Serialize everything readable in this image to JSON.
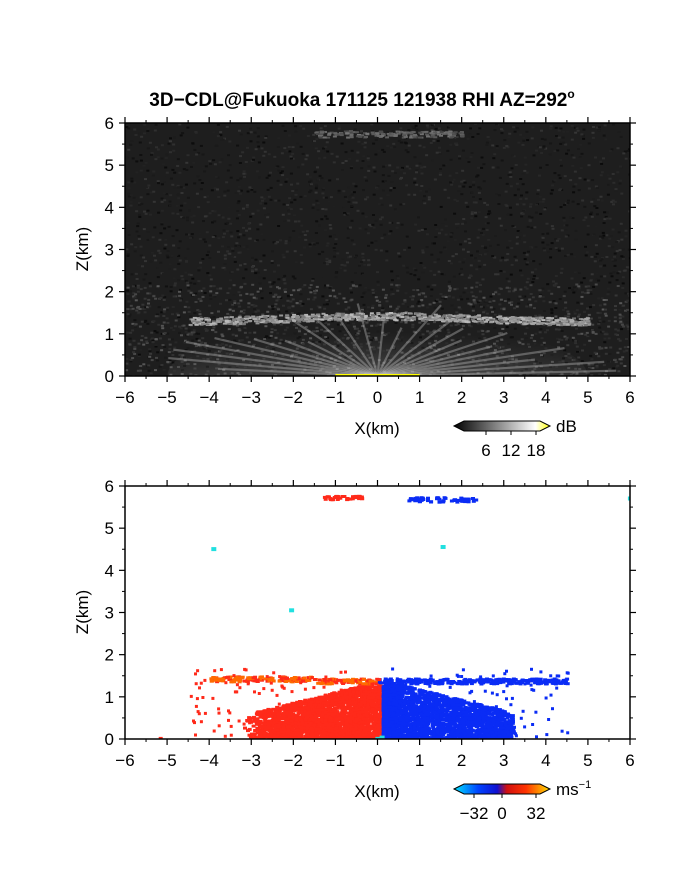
{
  "title": {
    "prefix": "3D−CDL@Fukuoka 171125 121938 RHI AZ=292",
    "superscript": "o"
  },
  "chart_data": [
    {
      "type": "heatmap",
      "panel": "reflectivity",
      "xlabel": "X(km)",
      "ylabel": "Z(km)",
      "xlim": [
        -6,
        6
      ],
      "ylim": [
        0,
        6
      ],
      "xticks": [
        -6,
        -5,
        -4,
        -3,
        -2,
        -1,
        0,
        1,
        2,
        3,
        4,
        5,
        6
      ],
      "yticks": [
        0,
        1,
        2,
        3,
        4,
        5,
        6
      ],
      "colorbar": {
        "unit": "dB",
        "ticks": [
          6,
          12,
          18
        ],
        "colors": [
          "#000000",
          "#ffffff",
          "#ffff00"
        ]
      },
      "colors": {
        "background": "#1e1e1e",
        "layer": "#9a9a9a",
        "fan": "#d8d8d8"
      },
      "features": {
        "layer_height_km": 1.45,
        "layer_x_range_km": [
          -4.5,
          5
        ],
        "upper_echo_height_km": 5.75,
        "upper_echo_x_range_km": [
          -1.5,
          2
        ]
      }
    },
    {
      "type": "heatmap",
      "panel": "doppler velocity",
      "xlabel": "X(km)",
      "ylabel": "Z(km)",
      "xlim": [
        -6,
        6
      ],
      "ylim": [
        0,
        6
      ],
      "xticks": [
        -6,
        -5,
        -4,
        -3,
        -2,
        -1,
        0,
        1,
        2,
        3,
        4,
        5,
        6
      ],
      "yticks": [
        0,
        1,
        2,
        3,
        4,
        5,
        6
      ],
      "colorbar": {
        "unit": "ms",
        "unit_exponent": "−1",
        "ticks": [
          "−32",
          "0",
          "32"
        ],
        "colors": [
          "#00e5ff",
          "#0033ff",
          "#ff2a00",
          "#ffcc00"
        ]
      },
      "colors": {
        "toward": "#0a2cf5",
        "away": "#ff2a1a",
        "away_light": "#ff6a00",
        "near_zero": "#21e0e0"
      },
      "features": {
        "negative_region_x_km": [
          -3.2,
          0.1
        ],
        "positive_region_x_km": [
          0.1,
          3.2
        ],
        "region_top_km": 1.55,
        "layer_height_km": 1.4,
        "layer_x_range_km": [
          -4,
          4.5
        ],
        "upper_echo_height_km": 5.75
      }
    }
  ]
}
